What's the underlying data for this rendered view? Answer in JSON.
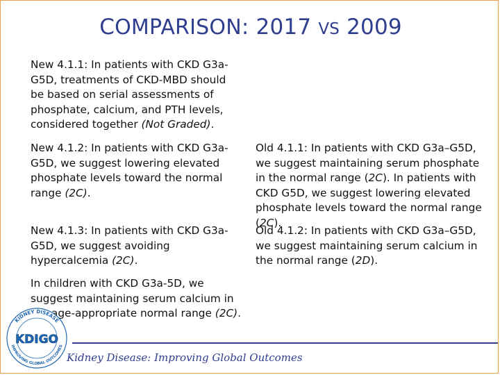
{
  "title": {
    "c1": "C",
    "rest1": "OMPARISON",
    "colon": ": 2017 ",
    "vs": "VS",
    "year": " 2009"
  },
  "blocks": {
    "new_111": {
      "label": "New 4.1.1",
      "text": ": In patients with CKD G3a-G5D, treatments of CKD-MBD should be based on serial assessments of phosphate, calcium, and PTH levels, considered together ",
      "grade": "(Not Graded)",
      "end": "."
    },
    "new_112": {
      "label": "New 4.1.2",
      "text": ": In patients with CKD G3a-G5D, we suggest lowering elevated phosphate levels toward the normal range ",
      "grade": "(2C)",
      "end": "."
    },
    "old_411": {
      "label": "Old 4.1.1:",
      "text": " In patients with CKD G3a–G5D, we suggest maintaining serum phosphate in the normal range (",
      "grade": "2C",
      "end": "). In patients with CKD G5D, we suggest lowering elevated phosphate levels toward the normal range (",
      "grade2": "2C",
      "end2": ")."
    },
    "new_113": {
      "label": "New 4.1.3",
      "text": ": In patients with CKD G3a-G5D, we suggest avoiding hypercalcemia ",
      "grade": "(2C)",
      "end": "."
    },
    "old_412": {
      "label": "Old 4.1.2:",
      "text": " In patients with CKD G3a–G5D, we suggest maintaining serum calcium in the normal range (",
      "grade": "2D",
      "end": ")."
    },
    "children": {
      "text": "In children with CKD G3a-5D, we suggest maintaining serum calcium in the age-appropriate normal range ",
      "grade": "(2C)",
      "end": "."
    }
  },
  "footer": {
    "org": "Kidney Disease: Improving Global Outcomes"
  },
  "logo": {
    "main": "KDIGO",
    "ring_top": "KIDNEY DISEASE",
    "ring_bottom": "IMPROVING GLOBAL OUTCOMES"
  },
  "colors": {
    "accent": "#2f3e8f",
    "border": "#f0a04b",
    "logo_blue": "#1f67b1"
  }
}
